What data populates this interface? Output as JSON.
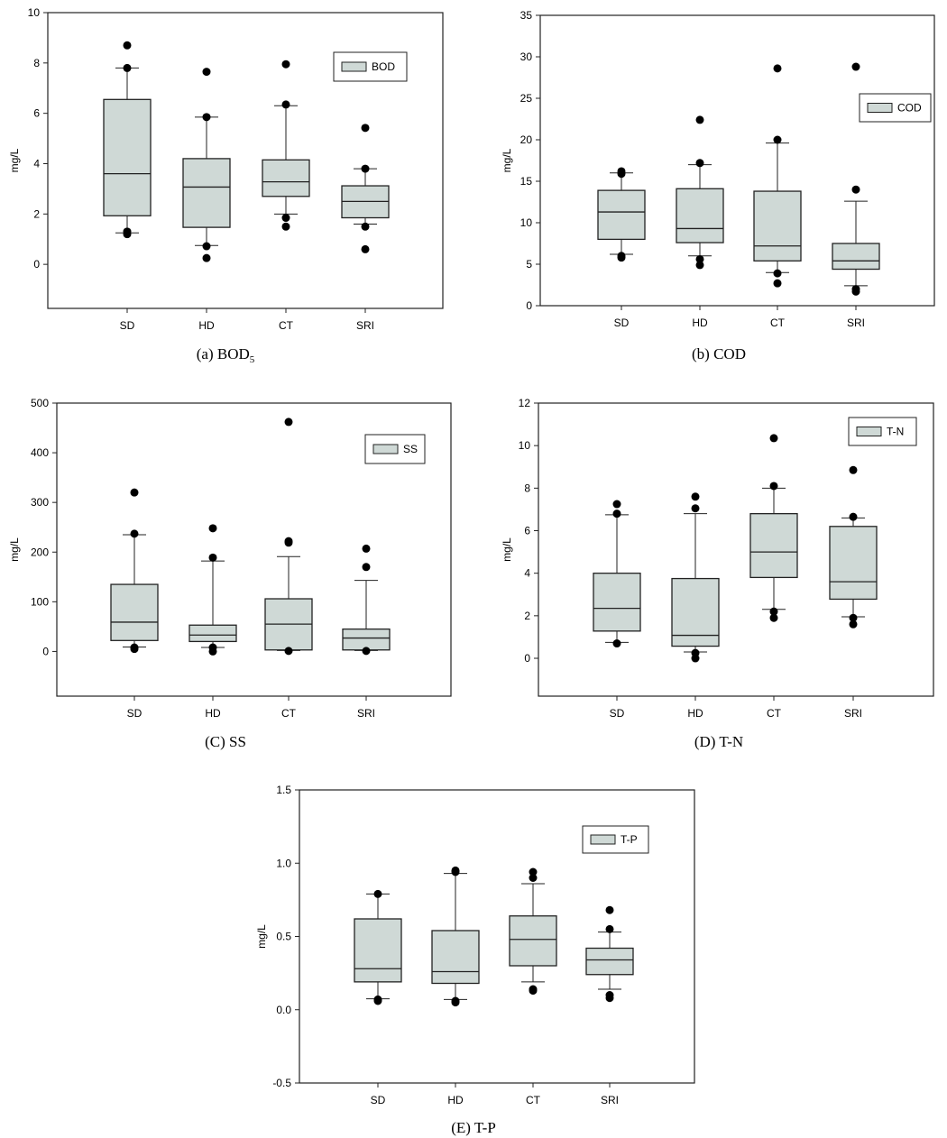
{
  "chart_data": [
    {
      "type": "box",
      "id": "a",
      "caption": "(a)  BOD",
      "caption_sub": "5",
      "ylabel": "mg/L",
      "legend": "BOD",
      "legend_position": "top-right",
      "ylim": [
        -1.75,
        10
      ],
      "yticks": [
        0,
        2,
        4,
        6,
        8,
        10
      ],
      "ytick_labels": [
        "0",
        "2",
        "4",
        "6",
        "8",
        "10"
      ],
      "categories": [
        "SD",
        "HD",
        "CT",
        "SRI"
      ],
      "boxes": [
        {
          "whisker_low": 1.25,
          "q1": 1.93,
          "median": 3.6,
          "q3": 6.55,
          "whisker_high": 7.8,
          "outliers": [
            8.7,
            7.8,
            1.3,
            1.2
          ]
        },
        {
          "whisker_low": 0.75,
          "q1": 1.47,
          "median": 3.07,
          "q3": 4.2,
          "whisker_high": 5.85,
          "outliers": [
            7.65,
            5.85,
            0.72,
            0.25
          ]
        },
        {
          "whisker_low": 2.0,
          "q1": 2.7,
          "median": 3.28,
          "q3": 4.15,
          "whisker_high": 6.3,
          "outliers": [
            7.95,
            6.35,
            1.85,
            1.5
          ]
        },
        {
          "whisker_low": 1.6,
          "q1": 1.85,
          "median": 2.5,
          "q3": 3.12,
          "whisker_high": 3.8,
          "outliers": [
            5.42,
            3.8,
            1.5,
            0.6
          ]
        }
      ]
    },
    {
      "type": "box",
      "id": "b",
      "caption": "(b)  COD",
      "caption_sub": "",
      "ylabel": "mg/L",
      "legend": "COD",
      "legend_position": "top-right",
      "ylim": [
        0,
        35
      ],
      "yticks": [
        0,
        5,
        10,
        15,
        20,
        25,
        30,
        35
      ],
      "ytick_labels": [
        "0",
        "5",
        "10",
        "15",
        "20",
        "25",
        "30",
        "35"
      ],
      "categories": [
        "SD",
        "HD",
        "CT",
        "SRI"
      ],
      "boxes": [
        {
          "whisker_low": 6.2,
          "q1": 8.0,
          "median": 11.3,
          "q3": 13.9,
          "whisker_high": 16.0,
          "outliers": [
            16.2,
            15.9,
            6.0,
            5.8
          ]
        },
        {
          "whisker_low": 6.0,
          "q1": 7.6,
          "median": 9.3,
          "q3": 14.1,
          "whisker_high": 17.0,
          "outliers": [
            22.4,
            17.2,
            5.6,
            4.9
          ]
        },
        {
          "whisker_low": 4.0,
          "q1": 5.4,
          "median": 7.2,
          "q3": 13.8,
          "whisker_high": 19.6,
          "outliers": [
            28.6,
            20.0,
            3.9,
            2.7
          ]
        },
        {
          "whisker_low": 2.4,
          "q1": 4.4,
          "median": 5.4,
          "q3": 7.5,
          "whisker_high": 12.6,
          "outliers": [
            28.8,
            14.0,
            2.0,
            1.7
          ]
        }
      ]
    },
    {
      "type": "box",
      "id": "c",
      "caption": "(C)  SS",
      "caption_sub": "",
      "ylabel": "mg/L",
      "legend": "SS",
      "legend_position": "top-right",
      "ylim": [
        -90,
        500
      ],
      "yticks": [
        0,
        100,
        200,
        300,
        400,
        500
      ],
      "ytick_labels": [
        "0",
        "100",
        "200",
        "300",
        "400",
        "500"
      ],
      "categories": [
        "SD",
        "HD",
        "CT",
        "SRI"
      ],
      "boxes": [
        {
          "whisker_low": 9,
          "q1": 22,
          "median": 59,
          "q3": 135,
          "whisker_high": 235,
          "outliers": [
            320,
            237,
            8,
            5
          ]
        },
        {
          "whisker_low": 8,
          "q1": 20,
          "median": 33,
          "q3": 53,
          "whisker_high": 182,
          "outliers": [
            248,
            189,
            8,
            0
          ]
        },
        {
          "whisker_low": 2,
          "q1": 3,
          "median": 55,
          "q3": 106,
          "whisker_high": 191,
          "outliers": [
            462,
            222,
            219,
            1
          ]
        },
        {
          "whisker_low": 2,
          "q1": 3,
          "median": 27,
          "q3": 45,
          "whisker_high": 143,
          "outliers": [
            207,
            170,
            1
          ]
        }
      ]
    },
    {
      "type": "box",
      "id": "d",
      "caption": "(D)  T-N",
      "caption_sub": "",
      "ylabel": "mg/L",
      "legend": "T-N",
      "legend_position": "top-right",
      "ylim": [
        -1.78,
        12
      ],
      "yticks": [
        0,
        2,
        4,
        6,
        8,
        10,
        12
      ],
      "ytick_labels": [
        "0",
        "2",
        "4",
        "6",
        "8",
        "10",
        "12"
      ],
      "categories": [
        "SD",
        "HD",
        "CT",
        "SRI"
      ],
      "boxes": [
        {
          "whisker_low": 0.75,
          "q1": 1.28,
          "median": 2.35,
          "q3": 4.0,
          "whisker_high": 6.75,
          "outliers": [
            7.25,
            6.8,
            0.7
          ]
        },
        {
          "whisker_low": 0.3,
          "q1": 0.57,
          "median": 1.08,
          "q3": 3.75,
          "whisker_high": 6.8,
          "outliers": [
            7.6,
            7.05,
            0.25,
            0.0
          ]
        },
        {
          "whisker_low": 2.3,
          "q1": 3.8,
          "median": 5.0,
          "q3": 6.8,
          "whisker_high": 8.0,
          "outliers": [
            10.35,
            8.1,
            2.2,
            1.9
          ]
        },
        {
          "whisker_low": 1.95,
          "q1": 2.78,
          "median": 3.6,
          "q3": 6.2,
          "whisker_high": 6.6,
          "outliers": [
            8.85,
            6.65,
            1.9,
            1.6
          ]
        }
      ]
    },
    {
      "type": "box",
      "id": "e",
      "caption": "(E)  T-P",
      "caption_sub": "",
      "ylabel": "mg/L",
      "legend": "T-P",
      "legend_position": "top-right",
      "ylim": [
        -0.5,
        1.5
      ],
      "yticks": [
        -0.5,
        0.0,
        0.5,
        1.0,
        1.5
      ],
      "ytick_labels": [
        "-0.5",
        "0.0",
        "0.5",
        "1.0",
        "1.5"
      ],
      "categories": [
        "SD",
        "HD",
        "CT",
        "SRI"
      ],
      "boxes": [
        {
          "whisker_low": 0.075,
          "q1": 0.19,
          "median": 0.28,
          "q3": 0.62,
          "whisker_high": 0.79,
          "outliers": [
            0.79,
            0.07,
            0.06
          ]
        },
        {
          "whisker_low": 0.07,
          "q1": 0.18,
          "median": 0.26,
          "q3": 0.54,
          "whisker_high": 0.93,
          "outliers": [
            0.95,
            0.94,
            0.06,
            0.05
          ]
        },
        {
          "whisker_low": 0.19,
          "q1": 0.3,
          "median": 0.48,
          "q3": 0.64,
          "whisker_high": 0.86,
          "outliers": [
            0.94,
            0.9,
            0.14,
            0.13
          ]
        },
        {
          "whisker_low": 0.14,
          "q1": 0.24,
          "median": 0.34,
          "q3": 0.42,
          "whisker_high": 0.53,
          "outliers": [
            0.68,
            0.55,
            0.1,
            0.08
          ]
        }
      ]
    }
  ],
  "colors": {
    "box_fill": "#cfd9d6",
    "stroke": "#222222",
    "point": "#000000"
  }
}
